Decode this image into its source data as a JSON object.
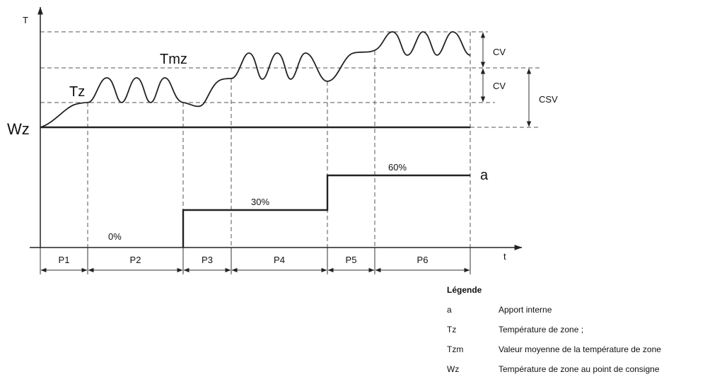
{
  "axes": {
    "y_label": "T",
    "x_label": "t"
  },
  "curve_labels": {
    "tz": "Tz",
    "tmz": "Tmz",
    "wz": "Wz",
    "a": "a"
  },
  "bands": {
    "cv_upper": "CV",
    "cv_lower": "CV",
    "csv": "CSV"
  },
  "periods": [
    "P1",
    "P2",
    "P3",
    "P4",
    "P5",
    "P6"
  ],
  "gains": [
    "0%",
    "30%",
    "60%"
  ],
  "legend": {
    "title": "Légende",
    "items": [
      {
        "symbol": "a",
        "description": "Apport interne"
      },
      {
        "symbol": "Tz",
        "description": "Température de zone ;"
      },
      {
        "symbol": "Tzm",
        "description": "Valeur moyenne de la température de zone"
      },
      {
        "symbol": "Wz",
        "description": "Température de zone au point de consigne"
      }
    ]
  }
}
